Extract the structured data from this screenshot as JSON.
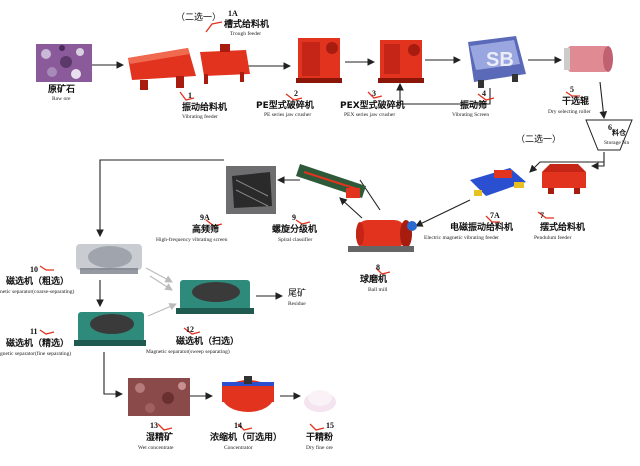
{
  "colors": {
    "machine_red": "#e2331f",
    "machine_dark_red": "#a81c10",
    "ore_purple": "#8a5a9a",
    "concentrate_brown": "#8b4a4a",
    "screen_blue": "#3a4f9a",
    "arrow": "#222222"
  },
  "choice_labels": {
    "top": "（二选一）",
    "right": "（二选一）"
  },
  "steps": {
    "raw_ore": {
      "zh": "原矿石",
      "en": "Raw ore"
    },
    "s1": {
      "num": "1",
      "zh": "振动给料机",
      "en": "Vibrating feeder"
    },
    "s1a": {
      "num": "1A",
      "zh": "槽式给料机",
      "en": "Trough feeder"
    },
    "s2": {
      "num": "2",
      "zh": "PE型式破碎机",
      "en": "PE series jaw crusher"
    },
    "s3": {
      "num": "3",
      "zh": "PEX型式破碎机",
      "en": "PEX series jaw crusher"
    },
    "s4": {
      "num": "4",
      "zh": "振动筛",
      "en": "Vibrating Screen"
    },
    "s5": {
      "num": "5",
      "zh": "干选辊",
      "en": "Dry selecting roller"
    },
    "s6": {
      "num": "6",
      "zh": "料仓",
      "en": "Storage bin"
    },
    "s7": {
      "num": "7",
      "zh": "摆式给料机",
      "en": "Pendulum feeder"
    },
    "s7a": {
      "num": "7A",
      "zh": "电磁振动给料机",
      "en": "Electric magnetic vibrating feeder"
    },
    "s8": {
      "num": "8",
      "zh": "球磨机",
      "en": "Ball mill"
    },
    "s9": {
      "num": "9",
      "zh": "螺旋分级机",
      "en": "Spiral classifier"
    },
    "s9a": {
      "num": "9A",
      "zh": "高频筛",
      "en": "High-frequency vibrating screen"
    },
    "s10": {
      "num": "10",
      "zh": "磁选机（粗选）",
      "en": "netic separator(coarse-separating)"
    },
    "s11": {
      "num": "11",
      "zh": "磁选机（精选）",
      "en": "gnetic separator(fine separating)"
    },
    "s12": {
      "num": "12",
      "zh": "磁选机（扫选）",
      "en": "Magnetic separator(sweep separating)"
    },
    "residue": {
      "zh": "尾矿",
      "en": "Residue"
    },
    "s13": {
      "num": "13",
      "zh": "湿精矿",
      "en": "Wet concentrate"
    },
    "s14": {
      "num": "14",
      "zh": "浓缩机（可选用）",
      "en": "Concentrator"
    },
    "s15": {
      "num": "15",
      "zh": "干精粉",
      "en": "Dry fine ore"
    }
  }
}
